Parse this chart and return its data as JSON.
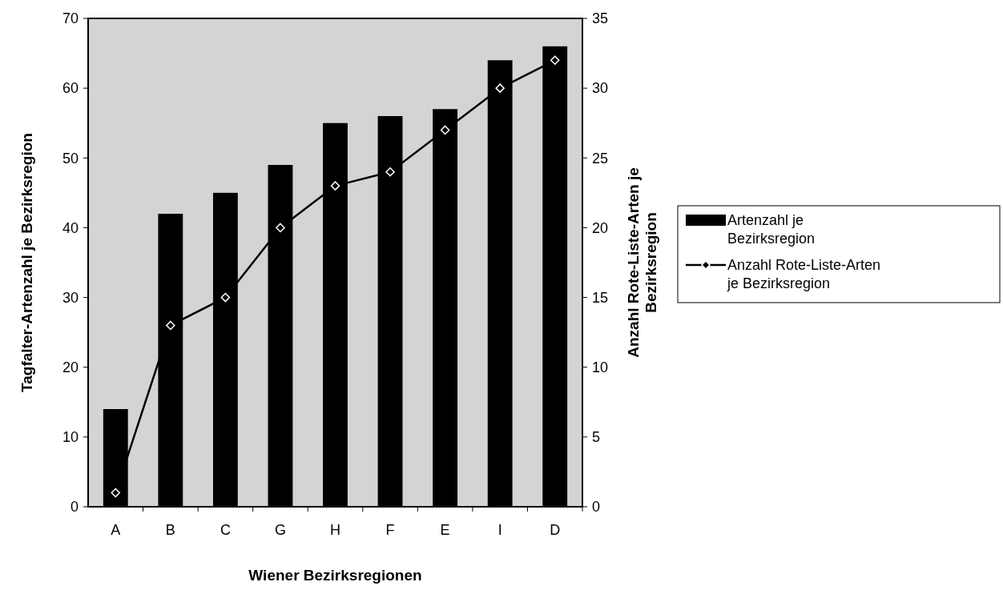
{
  "chart_data": {
    "type": "bar",
    "xlabel": "Wiener Bezirksregionen",
    "ylabel": "Tagfalter-Artenzahl je Bezirksregion",
    "y2label": "Anzahl Rote-Liste-Arten je Bezirksregion",
    "categories": [
      "A",
      "B",
      "C",
      "G",
      "H",
      "F",
      "E",
      "I",
      "D"
    ],
    "series": [
      {
        "name": "Artenzahl je Bezirksregion",
        "color": "#000000",
        "values": [
          14,
          42,
          45,
          49,
          55,
          56,
          57,
          64,
          66
        ]
      },
      {
        "name": "Anzahl Rote-Liste-Arten je Bezirksregion",
        "type": "line",
        "axis": "y2",
        "color": "#000000",
        "marker": "diamond",
        "values": [
          1,
          13,
          15,
          20,
          23,
          24,
          27,
          30,
          32
        ]
      }
    ],
    "ylim": [
      0,
      70
    ],
    "yticks": [
      0,
      10,
      20,
      30,
      40,
      50,
      60,
      70
    ],
    "y2lim": [
      0,
      35
    ],
    "y2ticks": [
      0,
      5,
      10,
      15,
      20,
      25,
      30,
      35
    ],
    "legend": "right",
    "grid": false
  }
}
